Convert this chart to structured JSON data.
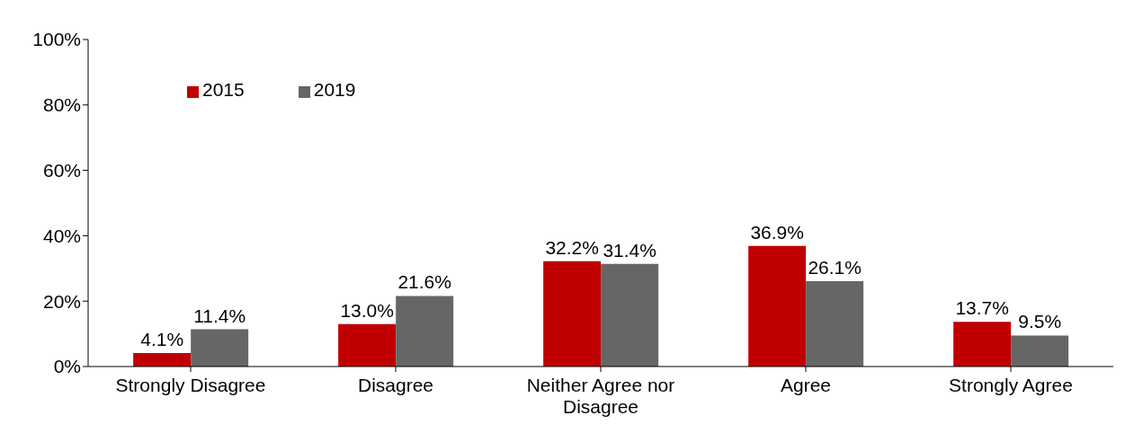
{
  "chart_data": {
    "type": "bar",
    "categories": [
      "Strongly Disagree",
      "Disagree",
      "Neither Agree nor Disagree",
      "Agree",
      "Strongly Agree"
    ],
    "series": [
      {
        "name": "2015",
        "color": "#c00000",
        "values": [
          4.1,
          13.0,
          32.2,
          36.9,
          13.7
        ],
        "value_labels": [
          "4.1%",
          "13.0%",
          "32.2%",
          "36.9%",
          "13.7%"
        ]
      },
      {
        "name": "2019",
        "color": "#666666",
        "values": [
          11.4,
          21.6,
          31.4,
          26.1,
          9.5
        ],
        "value_labels": [
          "11.4%",
          "21.6%",
          "31.4%",
          "26.1%",
          "9.5%"
        ]
      }
    ],
    "ylim": [
      0,
      100
    ],
    "yticks": [
      {
        "value": 0,
        "label": "0%"
      },
      {
        "value": 20,
        "label": "20%"
      },
      {
        "value": 40,
        "label": "40%"
      },
      {
        "value": 60,
        "label": "60%"
      },
      {
        "value": 80,
        "label": "80%"
      },
      {
        "value": 100,
        "label": "100%"
      }
    ],
    "grid": false,
    "legend": "top left"
  }
}
